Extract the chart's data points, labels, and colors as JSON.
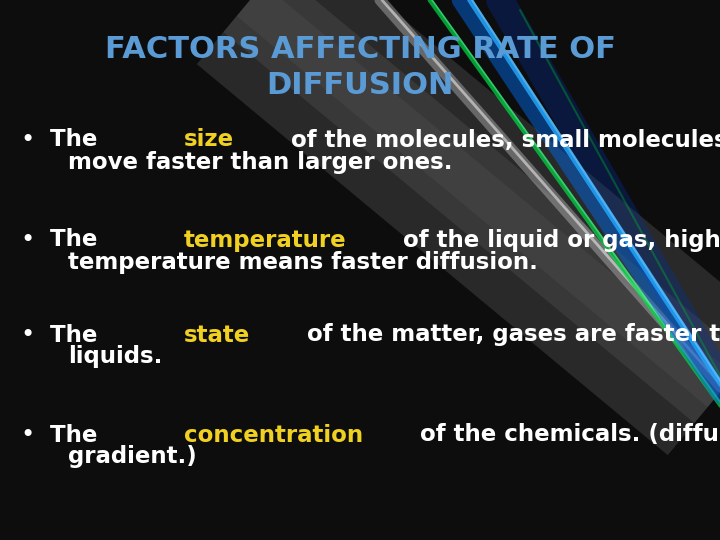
{
  "title_line1": "FACTORS AFFECTING RATE OF",
  "title_line2": "DIFFUSION",
  "title_color": "#5b9bd5",
  "background_color": "#0d0d0d",
  "bullet_color": "#ffffff",
  "highlight_color": "#f0d020",
  "bullets": [
    {
      "prefix": "The ",
      "bold_word": "size",
      "suffix1": " of the molecules, small molecules",
      "suffix2": "move faster than larger ones."
    },
    {
      "prefix": "The ",
      "bold_word": "temperature",
      "suffix1": " of the liquid or gas, higher",
      "suffix2": "temperature means faster diffusion."
    },
    {
      "prefix": "The ",
      "bold_word": "state",
      "suffix1": " of the matter, gases are faster than",
      "suffix2": "liquids."
    },
    {
      "prefix": "The ",
      "bold_word": "concentration",
      "suffix1": " of the chemicals. (diffusion",
      "suffix2": "gradient.)"
    }
  ],
  "figsize": [
    7.2,
    5.4
  ],
  "dpi": 100
}
